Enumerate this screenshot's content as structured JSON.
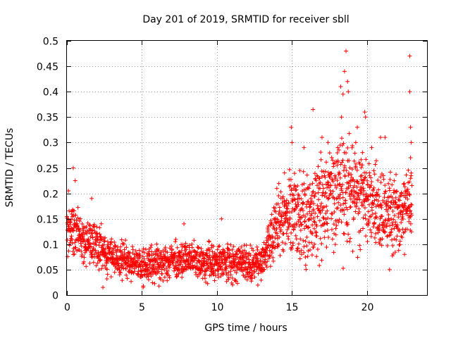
{
  "chart_data": {
    "type": "scatter",
    "title": "Day 201 of 2019, SRMTID for receiver sbll",
    "xlabel": "GPS time / hours",
    "ylabel": "SRMTID / TECUs",
    "xlim": [
      0,
      24
    ],
    "ylim": [
      0,
      0.5
    ],
    "x_ticks": [
      0,
      5,
      10,
      15,
      20
    ],
    "x_tick_labels": [
      "0",
      "5",
      "10",
      "15",
      "20"
    ],
    "y_ticks": [
      0,
      0.05,
      0.1,
      0.15,
      0.2,
      0.25,
      0.3,
      0.35,
      0.4,
      0.45,
      0.5
    ],
    "y_tick_labels": [
      "0",
      "0.05",
      "0.1",
      "0.15",
      "0.2",
      "0.25",
      "0.3",
      "0.35",
      "0.4",
      "0.45",
      "0.5"
    ],
    "grid": true,
    "marker": "+",
    "series": [
      {
        "name": "SRMTID",
        "color": "#ff0000",
        "profile_hours": [
          0,
          1,
          2,
          3,
          4,
          5,
          6,
          7,
          8,
          9,
          10,
          11,
          12,
          13,
          14,
          15,
          16,
          17,
          18,
          19,
          20,
          21,
          22,
          23
        ],
        "profile_center": [
          0.14,
          0.11,
          0.1,
          0.075,
          0.065,
          0.06,
          0.06,
          0.065,
          0.07,
          0.068,
          0.065,
          0.062,
          0.06,
          0.065,
          0.14,
          0.165,
          0.14,
          0.19,
          0.2,
          0.21,
          0.19,
          0.16,
          0.15,
          0.18
        ],
        "profile_spread": [
          0.04,
          0.04,
          0.04,
          0.03,
          0.03,
          0.03,
          0.03,
          0.03,
          0.03,
          0.03,
          0.03,
          0.03,
          0.03,
          0.03,
          0.06,
          0.07,
          0.08,
          0.08,
          0.09,
          0.09,
          0.08,
          0.07,
          0.06,
          0.07
        ],
        "n_points": 2200,
        "highlights": [
          {
            "x": 0.1,
            "y": 0.205
          },
          {
            "x": 0.42,
            "y": 0.25
          },
          {
            "x": 0.55,
            "y": 0.225
          },
          {
            "x": 1.65,
            "y": 0.19
          },
          {
            "x": 2.4,
            "y": 0.015
          },
          {
            "x": 7.8,
            "y": 0.14
          },
          {
            "x": 10.3,
            "y": 0.15
          },
          {
            "x": 14.95,
            "y": 0.33
          },
          {
            "x": 15.0,
            "y": 0.3
          },
          {
            "x": 15.8,
            "y": 0.29
          },
          {
            "x": 16.4,
            "y": 0.365
          },
          {
            "x": 17.0,
            "y": 0.31
          },
          {
            "x": 17.4,
            "y": 0.3
          },
          {
            "x": 18.05,
            "y": 0.29
          },
          {
            "x": 18.25,
            "y": 0.41
          },
          {
            "x": 18.3,
            "y": 0.35
          },
          {
            "x": 18.4,
            "y": 0.395
          },
          {
            "x": 18.5,
            "y": 0.44
          },
          {
            "x": 18.6,
            "y": 0.48
          },
          {
            "x": 18.7,
            "y": 0.42
          },
          {
            "x": 18.75,
            "y": 0.4
          },
          {
            "x": 19.25,
            "y": 0.3
          },
          {
            "x": 19.35,
            "y": 0.33
          },
          {
            "x": 19.85,
            "y": 0.36
          },
          {
            "x": 19.9,
            "y": 0.35
          },
          {
            "x": 20.9,
            "y": 0.31
          },
          {
            "x": 21.2,
            "y": 0.31
          },
          {
            "x": 21.5,
            "y": 0.05
          },
          {
            "x": 22.85,
            "y": 0.47
          },
          {
            "x": 22.85,
            "y": 0.4
          },
          {
            "x": 22.9,
            "y": 0.33
          },
          {
            "x": 22.95,
            "y": 0.3
          },
          {
            "x": 22.9,
            "y": 0.27
          },
          {
            "x": 22.95,
            "y": 0.24
          }
        ]
      }
    ]
  }
}
